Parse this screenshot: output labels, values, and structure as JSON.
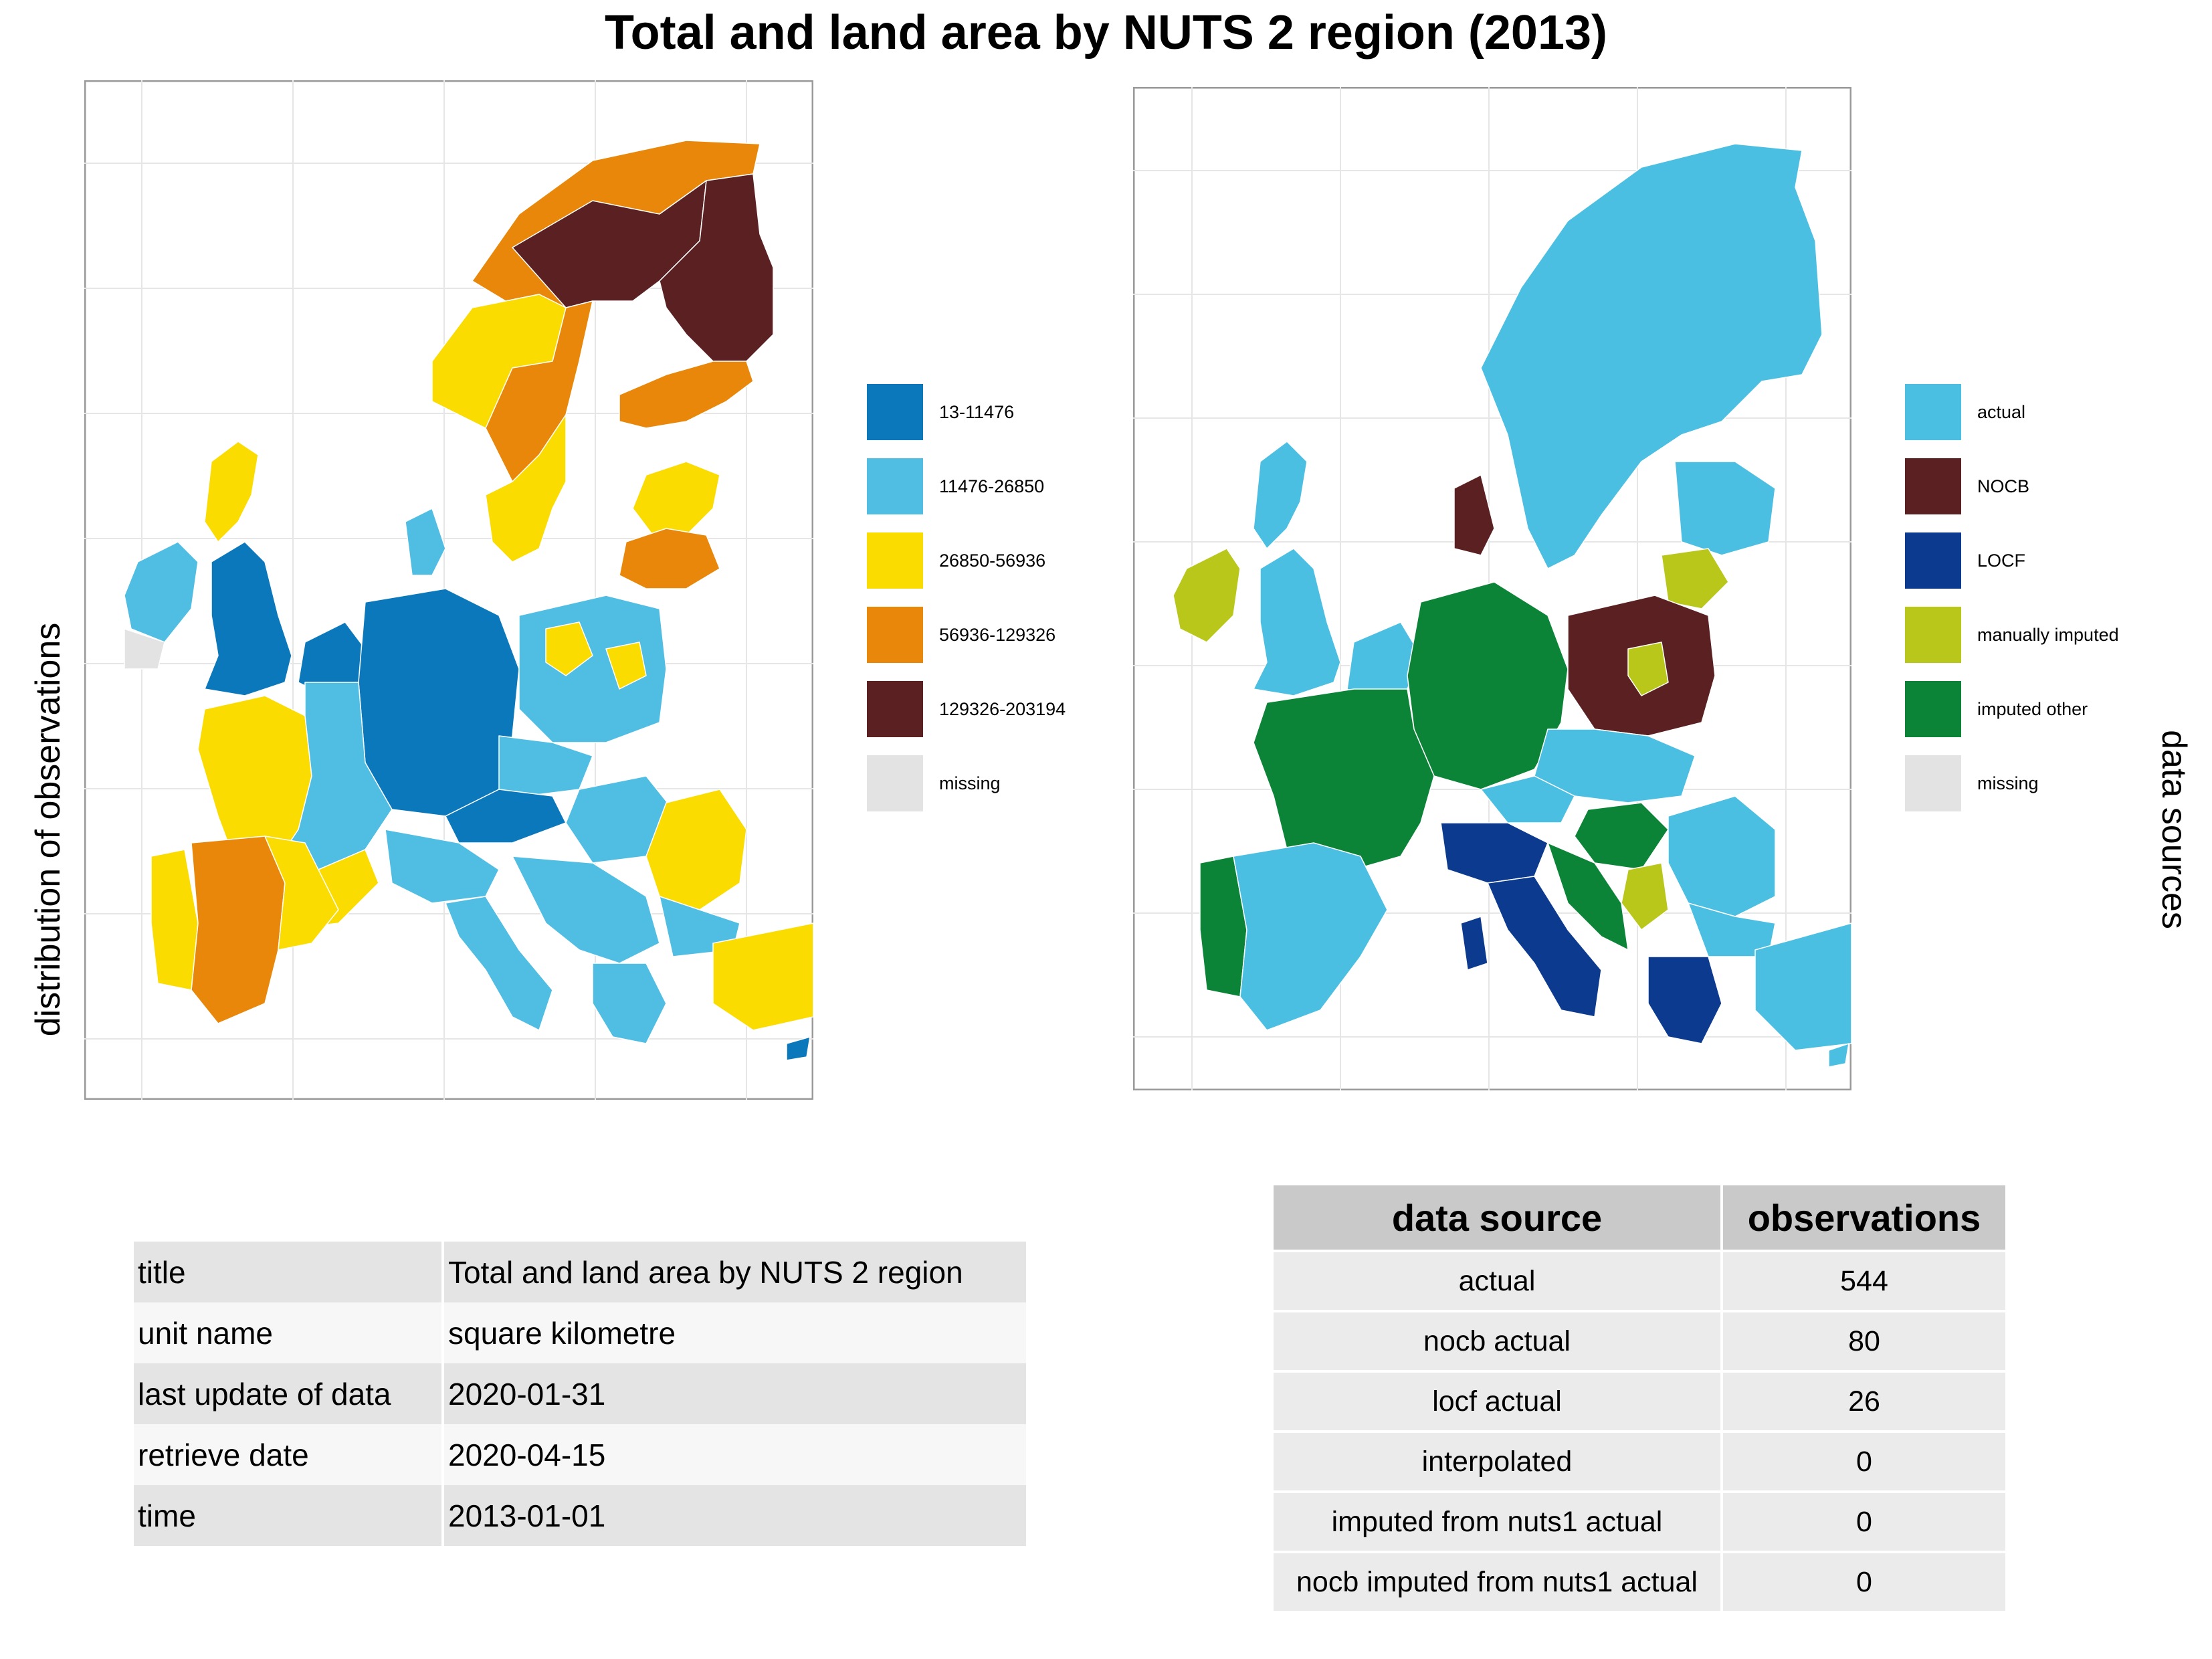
{
  "title": "Total and land area by NUTS 2 region (2013)",
  "left_axis_label": "distribution of observations",
  "right_axis_label": "data sources",
  "colors": {
    "class_1": "#0a78bb",
    "class_2": "#50bde3",
    "class_3": "#fadc00",
    "class_4": "#e8870a",
    "class_5": "#5b2122",
    "missing": "#e3e3e3",
    "actual": "#4bbfe2",
    "nocb": "#5b2122",
    "locf": "#0b3a8e",
    "manually_imputed": "#b9c61a",
    "imputed_other": "#0c8437"
  },
  "left_map": {
    "legend": [
      {
        "label": "13-11476",
        "color": "#0a78bb"
      },
      {
        "label": "11476-26850",
        "color": "#50bde3"
      },
      {
        "label": "26850-56936",
        "color": "#fadc00"
      },
      {
        "label": "56936-129326",
        "color": "#e8870a"
      },
      {
        "label": "129326-203194",
        "color": "#5b2122"
      },
      {
        "label": "missing",
        "color": "#e3e3e3"
      }
    ]
  },
  "right_map": {
    "legend": [
      {
        "label": "actual",
        "color": "#4bbfe2"
      },
      {
        "label": "NOCB",
        "color": "#5b2122"
      },
      {
        "label": "LOCF",
        "color": "#0b3a8e"
      },
      {
        "label": "manually imputed",
        "color": "#b9c61a"
      },
      {
        "label": "imputed other",
        "color": "#0c8437"
      },
      {
        "label": "missing",
        "color": "#e3e3e3"
      }
    ]
  },
  "metadata_table": {
    "rows": [
      {
        "key": "title",
        "value": "Total and land area by NUTS 2 region"
      },
      {
        "key": "unit name",
        "value": "square kilometre"
      },
      {
        "key": "last update of data",
        "value": "2020-01-31"
      },
      {
        "key": "retrieve date",
        "value": "2020-04-15"
      },
      {
        "key": "time",
        "value": "2013-01-01"
      }
    ]
  },
  "source_table": {
    "headers": [
      "data source",
      "observations"
    ],
    "rows": [
      {
        "source": "actual",
        "observations": "544"
      },
      {
        "source": "nocb actual",
        "observations": "80"
      },
      {
        "source": "locf actual",
        "observations": "26"
      },
      {
        "source": "interpolated",
        "observations": "0"
      },
      {
        "source": "imputed from nuts1 actual",
        "observations": "0"
      },
      {
        "source": "nocb imputed from nuts1 actual",
        "observations": "0"
      }
    ]
  }
}
